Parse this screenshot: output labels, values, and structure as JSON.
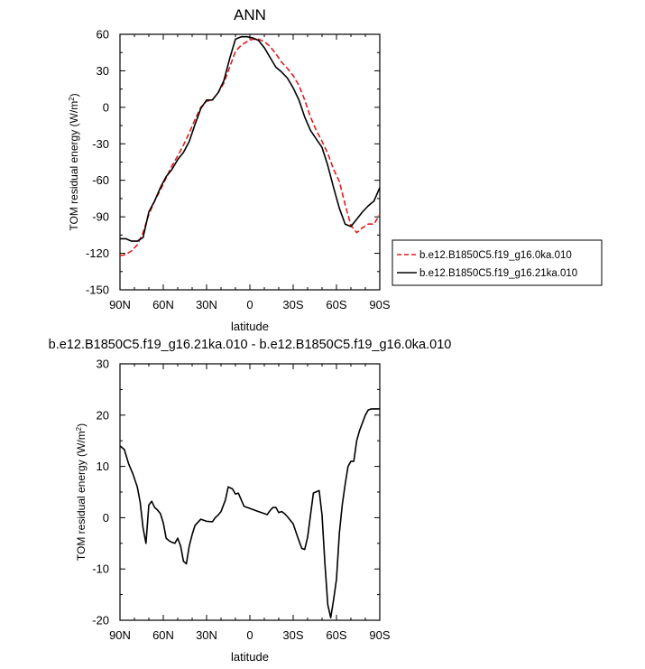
{
  "chart_data": [
    {
      "type": "line",
      "title": "ANN",
      "xlabel": "latitude",
      "ylabel_main": "TOM residual energy (W/m",
      "ylabel_sup": "2",
      "ylabel_close": ")",
      "xlim": [
        90,
        -90
      ],
      "ylim": [
        -150,
        60
      ],
      "xticks": [
        90,
        60,
        30,
        0,
        -30,
        -60,
        -90
      ],
      "xtick_labels": [
        "90N",
        "60N",
        "30N",
        "0",
        "30S",
        "60S",
        "90S"
      ],
      "yticks": [
        60,
        30,
        0,
        -30,
        -60,
        -90,
        -120,
        -150
      ],
      "ytick_labels": [
        "60",
        "30",
        "0",
        "-30",
        "-60",
        "-90",
        "-120",
        "-150"
      ],
      "grid": false,
      "legend_placement": "right",
      "series": [
        {
          "name": "b.e12.B1850C5.f19_g16.0ka.010",
          "color": "#e41a1c",
          "dash": "dashed",
          "x": [
            90,
            86,
            82,
            78,
            74,
            70,
            66,
            62,
            58,
            54,
            50,
            46,
            42,
            38,
            34,
            30,
            26,
            22,
            18,
            14,
            10,
            6,
            2,
            -2,
            -6,
            -10,
            -14,
            -18,
            -22,
            -26,
            -30,
            -34,
            -38,
            -42,
            -46,
            -50,
            -54,
            -58,
            -62,
            -66,
            -70,
            -74,
            -78,
            -82,
            -86,
            -90
          ],
          "y": [
            -122,
            -121,
            -118,
            -113,
            -103,
            -88,
            -77,
            -68,
            -58,
            -48,
            -40,
            -31,
            -21,
            -10,
            0,
            5,
            6,
            12,
            20,
            33,
            46,
            51,
            54,
            56,
            56,
            54,
            50,
            44,
            37,
            32,
            26,
            18,
            6,
            -8,
            -19,
            -28,
            -38,
            -51,
            -61,
            -80,
            -97,
            -103,
            -99,
            -96,
            -96,
            -88
          ]
        },
        {
          "name": "b.e12.B1850C5.f19_g16.21ka.010",
          "color": "#000000",
          "dash": "solid",
          "x": [
            90,
            86,
            82,
            78,
            74,
            70,
            66,
            62,
            58,
            54,
            50,
            46,
            42,
            38,
            34,
            30,
            26,
            22,
            18,
            14,
            10,
            6,
            2,
            -2,
            -6,
            -10,
            -14,
            -18,
            -22,
            -26,
            -30,
            -34,
            -38,
            -42,
            -46,
            -50,
            -54,
            -58,
            -62,
            -66,
            -70,
            -74,
            -78,
            -82,
            -86,
            -90
          ],
          "y": [
            -108,
            -108,
            -110,
            -110,
            -107,
            -86,
            -77,
            -66,
            -57,
            -51,
            -43,
            -37,
            -28,
            -14,
            -1,
            6,
            6,
            12,
            22,
            40,
            56,
            58,
            58,
            57,
            55,
            49,
            41,
            33,
            29,
            24,
            16,
            6,
            -8,
            -19,
            -26,
            -33,
            -48,
            -66,
            -83,
            -96,
            -98,
            -92,
            -86,
            -81,
            -77,
            -66
          ]
        }
      ]
    },
    {
      "type": "line",
      "title": "b.e12.B1850C5.f19_g16.21ka.010 - b.e12.B1850C5.f19_g16.0ka.010",
      "xlabel": "latitude",
      "ylabel_main": "TOM residual energy (W/m",
      "ylabel_sup": "2",
      "ylabel_close": ")",
      "xlim": [
        90,
        -90
      ],
      "ylim": [
        -20,
        30
      ],
      "xticks": [
        90,
        60,
        30,
        0,
        -30,
        -60,
        -90
      ],
      "xtick_labels": [
        "90N",
        "60N",
        "30N",
        "0",
        "30S",
        "60S",
        "90S"
      ],
      "yticks": [
        30,
        20,
        10,
        0,
        -10,
        -20
      ],
      "ytick_labels": [
        "30",
        "20",
        "10",
        "0",
        "-10",
        "-20"
      ],
      "grid": false,
      "series": [
        {
          "color": "#000000",
          "dash": "solid",
          "x": [
            90,
            87,
            84,
            81,
            78,
            76,
            74,
            72,
            70,
            68,
            66,
            64,
            62,
            60,
            58,
            56,
            54,
            52,
            50,
            48,
            46,
            44,
            42,
            40,
            38,
            34,
            30,
            26,
            24,
            22,
            20,
            17,
            15,
            12,
            10,
            8,
            4,
            0,
            -4,
            -8,
            -12,
            -14,
            -16,
            -18,
            -20,
            -22,
            -24,
            -26,
            -30,
            -34,
            -36,
            -38,
            -40,
            -44,
            -48,
            -50,
            -52,
            -54,
            -56,
            -58,
            -60,
            -62,
            -64,
            -66,
            -68,
            -70,
            -72,
            -74,
            -76,
            -78,
            -80,
            -82,
            -84,
            -86,
            -88,
            -90
          ],
          "y": [
            14,
            13.3,
            10.5,
            8.5,
            6,
            3,
            -2,
            -5,
            2.5,
            3.2,
            2,
            1.5,
            0.8,
            -1,
            -4,
            -4.5,
            -4.8,
            -5,
            -4,
            -5.5,
            -8.5,
            -9,
            -5.5,
            -3.3,
            -1.5,
            -0.3,
            -0.7,
            -0.8,
            0,
            0.5,
            1.2,
            3.4,
            6,
            5.6,
            4.6,
            4.8,
            2.2,
            1.8,
            1.4,
            1,
            0.6,
            1.4,
            2,
            2,
            1,
            1.2,
            0.8,
            0.2,
            -1.2,
            -4.5,
            -6,
            -6.2,
            -3.8,
            4.8,
            5.3,
            0.5,
            -9,
            -17,
            -19.5,
            -16,
            -12,
            -3,
            2.5,
            6.5,
            10,
            11,
            11,
            15,
            17,
            18.5,
            20,
            21,
            21.2,
            21.2,
            21.2,
            21.2
          ]
        }
      ]
    }
  ]
}
